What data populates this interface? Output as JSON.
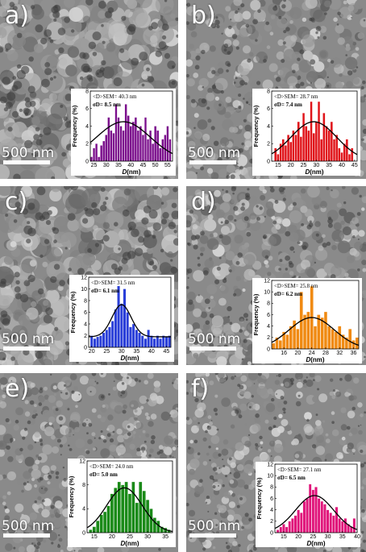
{
  "panels": [
    {
      "id": "a",
      "label": "a)",
      "scale_text": "500 nm",
      "stats_mean": "<D>SEM= 40.3 nm",
      "stats_sigma": "σD= 8.5 nm",
      "chart_data": {
        "type": "bar",
        "color": "#7b0f8c",
        "xlabel": "D(nm)",
        "ylabel": "Frequency (%)",
        "xticks": [
          25,
          30,
          35,
          40,
          45,
          50,
          55
        ],
        "yticks": [
          0,
          2,
          4,
          6,
          8
        ],
        "xlim": [
          23.5,
          57
        ],
        "ylim": [
          0,
          8
        ],
        "x": [
          24,
          25,
          26,
          27,
          28,
          29,
          30,
          31,
          32,
          33,
          34,
          35,
          36,
          37,
          38,
          39,
          40,
          41,
          42,
          43,
          44,
          45,
          46,
          47,
          48,
          49,
          50,
          51,
          52,
          53,
          54,
          55,
          56
        ],
        "values": [
          0.5,
          1.5,
          2.0,
          0.5,
          1.8,
          2.3,
          3.0,
          5.0,
          3.5,
          3.2,
          6.5,
          5.0,
          4.0,
          3.5,
          6.5,
          5.2,
          4.0,
          4.5,
          5.0,
          3.5,
          4.0,
          3.0,
          5.0,
          2.5,
          3.5,
          2.0,
          4.0,
          3.5,
          1.5,
          2.5,
          3.0,
          4.0,
          2.5
        ],
        "fit_mean": 37.0,
        "fit_sigma": 11.0,
        "fit_amp": 4.5
      }
    },
    {
      "id": "b",
      "label": "b)",
      "scale_text": "500 nm",
      "stats_mean": "<D>SEM= 28.7 nm",
      "stats_sigma": "σD= 7.4 nm",
      "chart_data": {
        "type": "bar",
        "color": "#e0141a",
        "xlabel": "D(nm)",
        "ylabel": "Frequency (%)",
        "xticks": [
          15,
          20,
          25,
          30,
          35,
          40,
          45
        ],
        "yticks": [
          0,
          2,
          4,
          6,
          8
        ],
        "xlim": [
          12.5,
          46
        ],
        "ylim": [
          0,
          8
        ],
        "x": [
          14,
          15,
          16,
          17,
          18,
          19,
          20,
          21,
          22,
          23,
          24,
          25,
          26,
          27,
          28,
          29,
          30,
          31,
          32,
          33,
          34,
          35,
          36,
          37,
          38,
          39,
          40,
          41,
          42,
          43,
          44
        ],
        "values": [
          1.5,
          0.8,
          2.0,
          2.5,
          1.8,
          3.0,
          2.2,
          3.5,
          3.0,
          4.5,
          2.8,
          5.5,
          4.0,
          3.5,
          6.8,
          3.2,
          4.5,
          6.8,
          2.5,
          5.5,
          4.0,
          3.5,
          4.5,
          2.5,
          3.0,
          1.5,
          1.0,
          2.0,
          2.5,
          0.8,
          1.5
        ],
        "fit_mean": 29.0,
        "fit_sigma": 9.0,
        "fit_amp": 4.5
      }
    },
    {
      "id": "c",
      "label": "c)",
      "scale_text": "500 nm",
      "stats_mean": "<D>SEM= 31.5 nm",
      "stats_sigma": "σD= 6.1 nm",
      "chart_data": {
        "type": "bar",
        "color": "#2a3fd8",
        "xlabel": "D(nm)",
        "ylabel": "Frequency (%)",
        "xticks": [
          20,
          25,
          30,
          35,
          40,
          45
        ],
        "yticks": [
          0,
          2,
          4,
          6,
          8,
          10,
          12
        ],
        "xlim": [
          19,
          46.5
        ],
        "ylim": [
          0,
          12
        ],
        "x": [
          20,
          21,
          22,
          23,
          24,
          25,
          26,
          27,
          28,
          29,
          30,
          31,
          32,
          33,
          34,
          35,
          36,
          37,
          38,
          39,
          40,
          41,
          42,
          43,
          44,
          45,
          46
        ],
        "values": [
          2.0,
          1.5,
          1.8,
          2.0,
          2.5,
          3.0,
          3.5,
          4.5,
          6.5,
          10.5,
          7.5,
          10.0,
          6.0,
          3.5,
          4.0,
          3.0,
          2.5,
          2.0,
          1.5,
          3.0,
          2.0,
          1.5,
          2.0,
          1.5,
          2.0,
          1.8,
          2.0
        ],
        "fit_mean": 30.0,
        "fit_sigma": 3.2,
        "fit_amp": 5.5,
        "fit_base": 1.8
      }
    },
    {
      "id": "d",
      "label": "d)",
      "scale_text": "500 nm",
      "stats_mean": "<D>SEM= 25.8 nm",
      "stats_sigma": "σD= 6.2 nm",
      "chart_data": {
        "type": "bar",
        "color": "#f08a12",
        "xlabel": "D(nm)",
        "ylabel": "Frequency (%)",
        "xticks": [
          16,
          20,
          24,
          28,
          32,
          36
        ],
        "yticks": [
          0,
          2,
          4,
          6,
          8,
          10,
          12
        ],
        "xlim": [
          12.5,
          37.5
        ],
        "ylim": [
          0,
          12
        ],
        "x": [
          13,
          14,
          15,
          16,
          17,
          18,
          19,
          20,
          21,
          22,
          23,
          24,
          25,
          26,
          27,
          28,
          29,
          30,
          31,
          32,
          33,
          34,
          35,
          36,
          37
        ],
        "values": [
          1.0,
          2.0,
          1.5,
          3.0,
          2.5,
          4.0,
          5.0,
          3.5,
          10.0,
          6.0,
          6.5,
          11.0,
          4.0,
          6.0,
          5.5,
          6.5,
          4.0,
          3.5,
          3.0,
          4.0,
          2.5,
          2.0,
          3.5,
          1.5,
          2.0
        ],
        "fit_mean": 24.0,
        "fit_sigma": 6.5,
        "fit_amp": 5.5
      }
    },
    {
      "id": "e",
      "label": "e)",
      "scale_text": "500 nm",
      "stats_mean": "<D>SEM= 24.0 nm",
      "stats_sigma": "σD= 5.0 nm",
      "chart_data": {
        "type": "bar",
        "color": "#1a8a18",
        "xlabel": "D(nm)",
        "ylabel": "Frequency (%)",
        "xticks": [
          15,
          20,
          25,
          30,
          35
        ],
        "yticks": [
          0,
          4,
          8,
          12
        ],
        "xlim": [
          13,
          37
        ],
        "ylim": [
          0,
          12
        ],
        "x": [
          14,
          15,
          16,
          17,
          18,
          19,
          20,
          21,
          22,
          23,
          24,
          25,
          26,
          27,
          28,
          29,
          30,
          31,
          32,
          33,
          34,
          35,
          36
        ],
        "values": [
          0.5,
          1.0,
          2.0,
          3.0,
          3.5,
          4.5,
          6.5,
          7.5,
          8.5,
          8.0,
          8.5,
          6.5,
          8.5,
          5.0,
          8.5,
          7.0,
          5.5,
          4.0,
          2.5,
          2.0,
          1.0,
          0.8,
          0.5
        ],
        "fit_mean": 23.5,
        "fit_sigma": 5.0,
        "fit_amp": 7.5
      }
    },
    {
      "id": "f",
      "label": "f)",
      "scale_text": "500 nm",
      "stats_mean": "<D>SEM= 27.1 nm",
      "stats_sigma": "σD= 6.5 nm",
      "chart_data": {
        "type": "bar",
        "color": "#e0147a",
        "xlabel": "D(nm)",
        "ylabel": "Frequency (%)",
        "xticks": [
          15,
          20,
          25,
          30,
          35,
          40
        ],
        "yticks": [
          0,
          2,
          4,
          6,
          8,
          10,
          12
        ],
        "xlim": [
          12,
          40
        ],
        "ylim": [
          0,
          12
        ],
        "x": [
          13,
          14,
          15,
          16,
          17,
          18,
          19,
          20,
          21,
          22,
          23,
          24,
          25,
          26,
          27,
          28,
          29,
          30,
          31,
          32,
          33,
          34,
          35,
          36,
          37,
          38,
          39
        ],
        "values": [
          0.5,
          1.0,
          1.5,
          1.0,
          2.0,
          2.5,
          3.0,
          4.0,
          3.5,
          5.5,
          6.0,
          8.5,
          7.5,
          8.0,
          6.0,
          5.5,
          5.0,
          4.0,
          3.5,
          3.0,
          4.5,
          2.5,
          2.0,
          2.5,
          1.5,
          1.0,
          2.5
        ],
        "fit_mean": 25.5,
        "fit_sigma": 6.5,
        "fit_amp": 6.5
      }
    }
  ]
}
